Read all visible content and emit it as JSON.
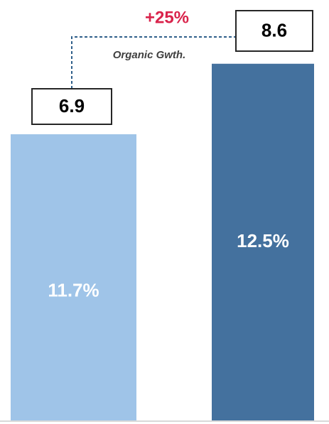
{
  "chart_data": {
    "type": "bar",
    "categories": [
      null,
      null
    ],
    "values": [
      6.9,
      8.6
    ],
    "colors": [
      "#9fc4e8",
      "#44719e"
    ],
    "inner_labels": [
      "11.7%",
      "12.5%"
    ],
    "growth_label": "+25%",
    "growth_note": "Organic Gwth.",
    "growth_color": "#d9234b",
    "ylim": [
      0,
      10
    ],
    "grid": false
  }
}
